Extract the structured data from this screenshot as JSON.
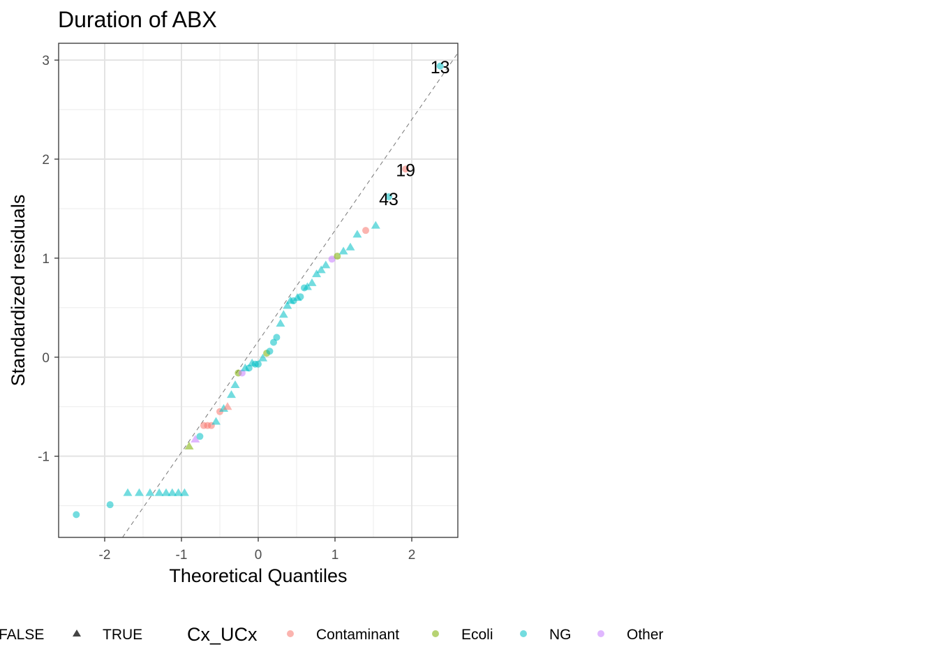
{
  "chart_data": {
    "type": "scatter",
    "title": "Duration of ABX",
    "xlabel": "Theoretical Quantiles",
    "ylabel": "Standardized residuals",
    "xlim": [
      -2.6,
      2.6
    ],
    "ylim": [
      -1.82,
      3.17
    ],
    "x_ticks": [
      -2,
      -1,
      0,
      1,
      2
    ],
    "x_tick_labels": [
      "-2",
      "-1",
      "0",
      "1",
      "2"
    ],
    "y_ticks": [
      -1,
      0,
      1,
      2,
      3
    ],
    "y_tick_labels": [
      "-1",
      "0",
      "1",
      "2",
      "3"
    ],
    "grid": true,
    "reference_line": {
      "intercept": 0.16,
      "slope": 1.12,
      "style": "dashed"
    },
    "colors": {
      "Contaminant": "#F8766D",
      "Ecoli": "#7CAE00",
      "NG": "#00BFC4",
      "Other": "#C77CFF"
    },
    "shape_legend": {
      "entries": [
        {
          "label": "FALSE",
          "shape": "circle"
        },
        {
          "label": "TRUE",
          "shape": "triangle"
        }
      ]
    },
    "color_legend": {
      "title": "Cx_UCx",
      "entries": [
        "Contaminant",
        "Ecoli",
        "NG",
        "Other"
      ]
    },
    "legend_position": "bottom",
    "annotations": [
      {
        "text": "13",
        "x": 2.37,
        "y": 2.93
      },
      {
        "text": "19",
        "x": 1.92,
        "y": 1.89
      },
      {
        "text": "43",
        "x": 1.7,
        "y": 1.6
      }
    ],
    "points": [
      {
        "x": -2.37,
        "y": -1.59,
        "group": "NG",
        "shape": "circle"
      },
      {
        "x": -1.93,
        "y": -1.49,
        "group": "NG",
        "shape": "circle"
      },
      {
        "x": -1.7,
        "y": -1.37,
        "group": "NG",
        "shape": "triangle"
      },
      {
        "x": -1.55,
        "y": -1.37,
        "group": "NG",
        "shape": "triangle"
      },
      {
        "x": -1.41,
        "y": -1.37,
        "group": "NG",
        "shape": "triangle"
      },
      {
        "x": -1.29,
        "y": -1.37,
        "group": "NG",
        "shape": "triangle"
      },
      {
        "x": -1.2,
        "y": -1.37,
        "group": "NG",
        "shape": "triangle"
      },
      {
        "x": -1.12,
        "y": -1.37,
        "group": "NG",
        "shape": "triangle"
      },
      {
        "x": -1.04,
        "y": -1.37,
        "group": "NG",
        "shape": "triangle"
      },
      {
        "x": -0.96,
        "y": -1.37,
        "group": "NG",
        "shape": "triangle"
      },
      {
        "x": -0.9,
        "y": -0.9,
        "group": "Ecoli",
        "shape": "triangle"
      },
      {
        "x": -0.82,
        "y": -0.83,
        "group": "Other",
        "shape": "triangle"
      },
      {
        "x": -0.76,
        "y": -0.8,
        "group": "NG",
        "shape": "circle"
      },
      {
        "x": -0.71,
        "y": -0.69,
        "group": "Contaminant",
        "shape": "circle"
      },
      {
        "x": -0.66,
        "y": -0.69,
        "group": "Contaminant",
        "shape": "circle"
      },
      {
        "x": -0.61,
        "y": -0.69,
        "group": "Contaminant",
        "shape": "circle"
      },
      {
        "x": -0.55,
        "y": -0.65,
        "group": "NG",
        "shape": "triangle"
      },
      {
        "x": -0.5,
        "y": -0.55,
        "group": "Contaminant",
        "shape": "circle"
      },
      {
        "x": -0.45,
        "y": -0.52,
        "group": "NG",
        "shape": "triangle"
      },
      {
        "x": -0.4,
        "y": -0.5,
        "group": "Contaminant",
        "shape": "triangle"
      },
      {
        "x": -0.35,
        "y": -0.38,
        "group": "NG",
        "shape": "triangle"
      },
      {
        "x": -0.3,
        "y": -0.28,
        "group": "NG",
        "shape": "triangle"
      },
      {
        "x": -0.26,
        "y": -0.16,
        "group": "Ecoli",
        "shape": "circle"
      },
      {
        "x": -0.21,
        "y": -0.16,
        "group": "Other",
        "shape": "circle"
      },
      {
        "x": -0.17,
        "y": -0.11,
        "group": "NG",
        "shape": "triangle"
      },
      {
        "x": -0.12,
        "y": -0.11,
        "group": "NG",
        "shape": "circle"
      },
      {
        "x": -0.08,
        "y": -0.06,
        "group": "NG",
        "shape": "triangle"
      },
      {
        "x": -0.04,
        "y": -0.07,
        "group": "NG",
        "shape": "circle"
      },
      {
        "x": 0.0,
        "y": -0.07,
        "group": "NG",
        "shape": "circle"
      },
      {
        "x": 0.06,
        "y": -0.01,
        "group": "NG",
        "shape": "triangle"
      },
      {
        "x": 0.11,
        "y": 0.04,
        "group": "Ecoli",
        "shape": "circle"
      },
      {
        "x": 0.15,
        "y": 0.06,
        "group": "NG",
        "shape": "circle"
      },
      {
        "x": 0.2,
        "y": 0.15,
        "group": "NG",
        "shape": "circle"
      },
      {
        "x": 0.24,
        "y": 0.2,
        "group": "NG",
        "shape": "circle"
      },
      {
        "x": 0.29,
        "y": 0.34,
        "group": "NG",
        "shape": "triangle"
      },
      {
        "x": 0.33,
        "y": 0.43,
        "group": "NG",
        "shape": "triangle"
      },
      {
        "x": 0.38,
        "y": 0.52,
        "group": "NG",
        "shape": "triangle"
      },
      {
        "x": 0.42,
        "y": 0.57,
        "group": "NG",
        "shape": "triangle"
      },
      {
        "x": 0.46,
        "y": 0.57,
        "group": "NG",
        "shape": "circle"
      },
      {
        "x": 0.51,
        "y": 0.6,
        "group": "NG",
        "shape": "triangle"
      },
      {
        "x": 0.55,
        "y": 0.61,
        "group": "NG",
        "shape": "circle"
      },
      {
        "x": 0.6,
        "y": 0.7,
        "group": "NG",
        "shape": "circle"
      },
      {
        "x": 0.64,
        "y": 0.71,
        "group": "NG",
        "shape": "triangle"
      },
      {
        "x": 0.7,
        "y": 0.75,
        "group": "NG",
        "shape": "triangle"
      },
      {
        "x": 0.76,
        "y": 0.84,
        "group": "NG",
        "shape": "triangle"
      },
      {
        "x": 0.82,
        "y": 0.88,
        "group": "NG",
        "shape": "triangle"
      },
      {
        "x": 0.88,
        "y": 0.93,
        "group": "NG",
        "shape": "triangle"
      },
      {
        "x": 0.96,
        "y": 0.99,
        "group": "Other",
        "shape": "circle"
      },
      {
        "x": 1.03,
        "y": 1.02,
        "group": "Ecoli",
        "shape": "circle"
      },
      {
        "x": 1.11,
        "y": 1.07,
        "group": "NG",
        "shape": "triangle"
      },
      {
        "x": 1.2,
        "y": 1.11,
        "group": "NG",
        "shape": "triangle"
      },
      {
        "x": 1.29,
        "y": 1.24,
        "group": "NG",
        "shape": "triangle"
      },
      {
        "x": 1.4,
        "y": 1.28,
        "group": "Contaminant",
        "shape": "circle"
      },
      {
        "x": 1.53,
        "y": 1.33,
        "group": "NG",
        "shape": "triangle"
      },
      {
        "x": 1.7,
        "y": 1.62,
        "group": "NG",
        "shape": "circle"
      },
      {
        "x": 1.92,
        "y": 1.9,
        "group": "Contaminant",
        "shape": "circle"
      },
      {
        "x": 2.37,
        "y": 2.94,
        "group": "NG",
        "shape": "circle"
      }
    ]
  }
}
